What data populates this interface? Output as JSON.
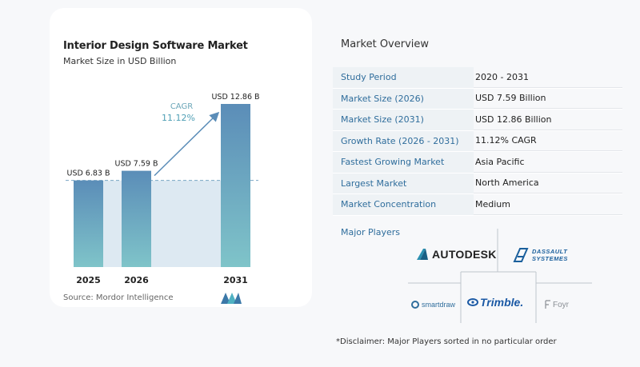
{
  "chart": {
    "title": "Interior Design Software Market",
    "subtitle": "Market Size in USD Billion",
    "source": "Source:  Mordor Intelligence",
    "cagr_label": "CAGR",
    "cagr_value": "11.12%"
  },
  "chart_data": {
    "type": "bar",
    "title": "Interior Design Software Market",
    "subtitle": "Market Size in USD Billion",
    "categories": [
      "2025",
      "2026",
      "2031"
    ],
    "values": [
      6.83,
      7.59,
      12.86
    ],
    "data_labels": [
      "USD 6.83 B",
      "USD 7.59 B",
      "USD 12.86 B"
    ],
    "annotation": "CAGR 11.12%",
    "ylim": [
      0,
      12.86
    ],
    "grid": false,
    "colors": {
      "bar_top": "#5b8db8",
      "bar_bottom": "#7fc4c9",
      "band": "#dde9f2",
      "accent": "#4f9fb5"
    }
  },
  "overview": {
    "title": "Market Overview",
    "rows": [
      {
        "label": "Study Period",
        "value": "2020 - 2031"
      },
      {
        "label": "Market Size (2026)",
        "value": "USD 7.59 Billion"
      },
      {
        "label": "Market Size (2031)",
        "value": "USD 12.86 Billion"
      },
      {
        "label": "Growth Rate (2026 - 2031)",
        "value": "11.12% CAGR"
      },
      {
        "label": "Fastest Growing Market",
        "value": "Asia Pacific"
      },
      {
        "label": "Largest Market",
        "value": "North America"
      },
      {
        "label": "Market Concentration",
        "value": "Medium"
      }
    ]
  },
  "players": {
    "title": "Major Players",
    "logos": [
      "AUTODESK",
      "DASSAULT SYSTEMES",
      "smartdraw",
      "Trimble.",
      "Foyr"
    ],
    "disclaimer": "*Disclaimer: Major Players sorted in no particular order"
  }
}
